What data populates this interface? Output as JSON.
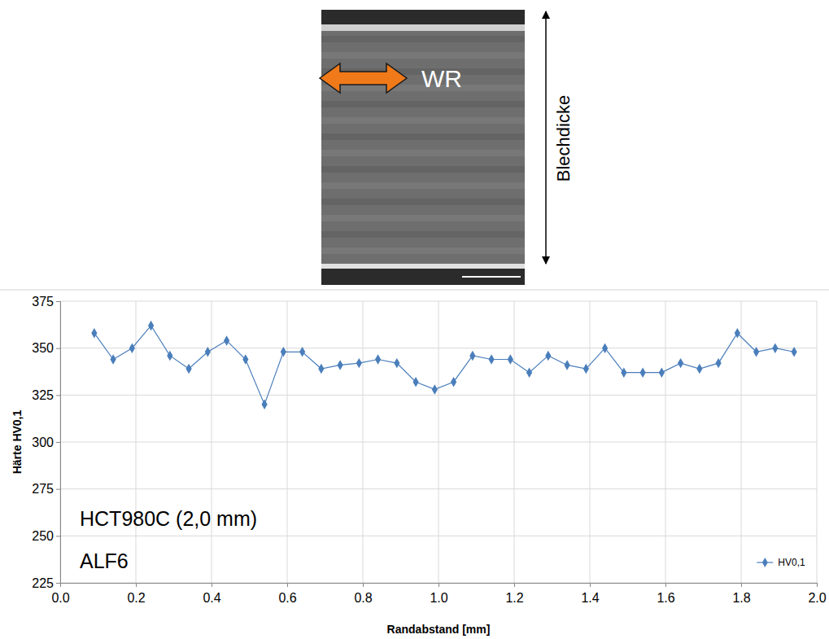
{
  "chart_data": {
    "type": "line",
    "x_label": "Randabstand [mm]",
    "y_label": "Härte HV0,1",
    "annotations": [
      "HCT980C (2,0 mm)",
      "ALF6"
    ],
    "x": [
      0.09,
      0.14,
      0.19,
      0.24,
      0.29,
      0.34,
      0.39,
      0.44,
      0.49,
      0.54,
      0.59,
      0.64,
      0.69,
      0.74,
      0.79,
      0.84,
      0.89,
      0.94,
      0.99,
      1.04,
      1.09,
      1.14,
      1.19,
      1.24,
      1.29,
      1.34,
      1.39,
      1.44,
      1.49,
      1.54,
      1.59,
      1.64,
      1.69,
      1.74,
      1.79,
      1.84,
      1.89,
      1.94
    ],
    "series": [
      {
        "name": "HV0,1",
        "color": "#4a7ebb",
        "marker": "diamond",
        "line_style": "solid",
        "values": [
          358,
          344,
          350,
          362,
          346,
          339,
          348,
          354,
          344,
          320,
          348,
          348,
          339,
          341,
          342,
          344,
          342,
          332,
          328,
          332,
          346,
          344,
          344,
          337,
          346,
          341,
          339,
          350,
          337,
          337,
          337,
          342,
          339,
          342,
          358,
          348,
          350,
          348
        ]
      }
    ],
    "xlim": [
      0,
      2
    ],
    "xticks": [
      {
        "value": 0,
        "label": "0.0"
      },
      0.2,
      0.4,
      0.6,
      0.8,
      {
        "value": 1,
        "label": "1.0"
      },
      1.2,
      1.4,
      1.6,
      1.8,
      {
        "value": 2,
        "label": "2.0"
      }
    ],
    "ylim": [
      225,
      375
    ],
    "yticks": [
      225,
      250,
      275,
      300,
      325,
      350,
      375
    ],
    "grid": true,
    "legend": "lower right"
  },
  "micrograph": {
    "arrow_label": "WR",
    "thickness_label": "Blechdicke"
  }
}
